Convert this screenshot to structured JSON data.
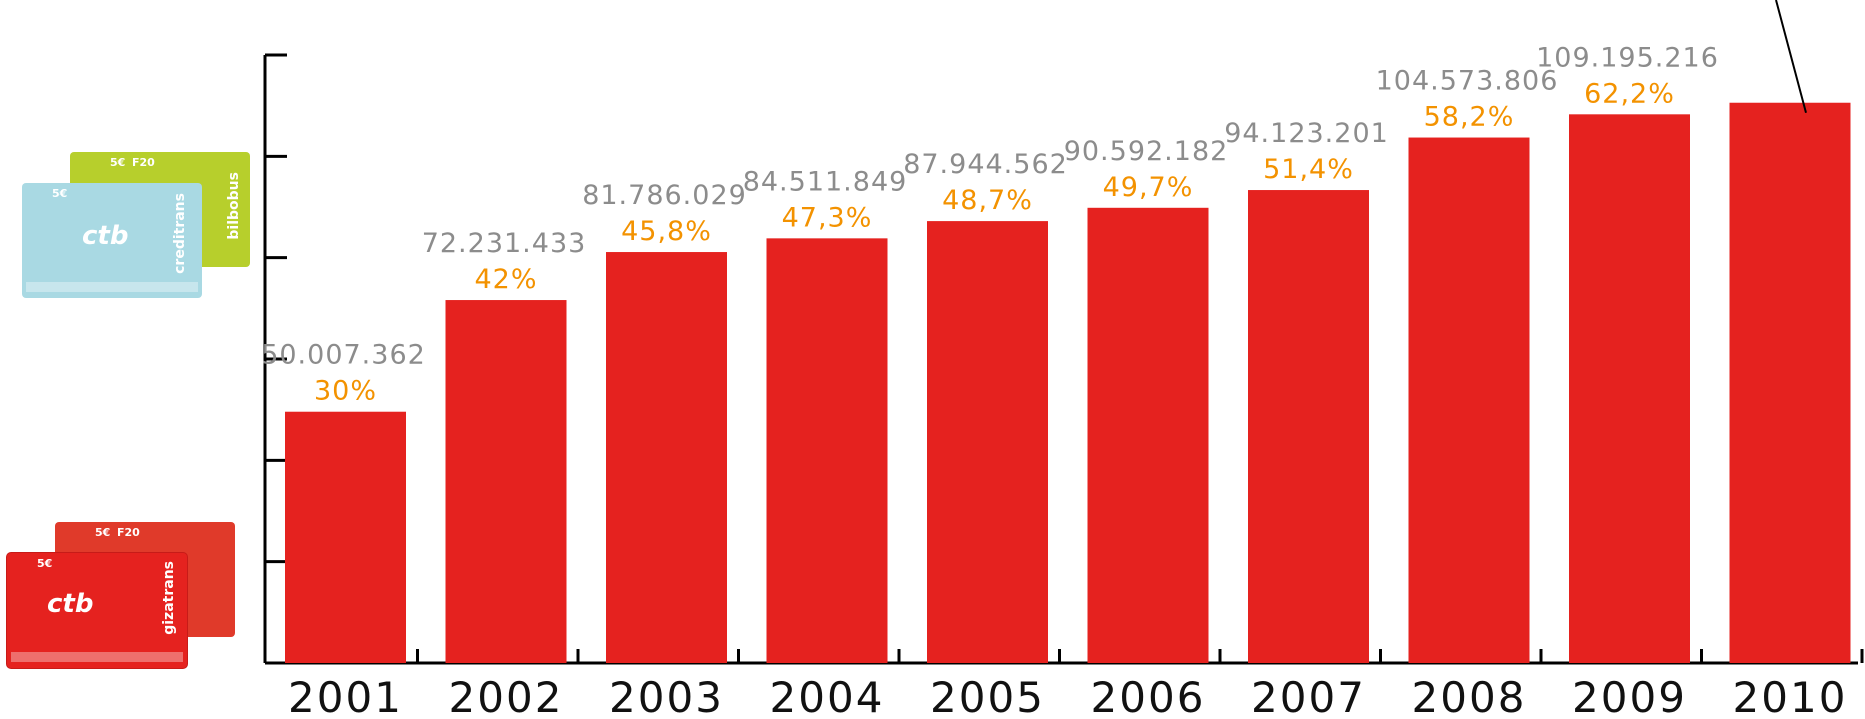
{
  "chart_data": {
    "type": "bar",
    "categories": [
      "2001",
      "2002",
      "2003",
      "2004",
      "2005",
      "2006",
      "2007",
      "2008",
      "2009",
      "2010"
    ],
    "values": [
      50007362,
      72231433,
      81786029,
      84511849,
      87944562,
      90592182,
      94123201,
      104573806,
      109195216,
      111500000
    ],
    "value_labels": [
      "50.007.362",
      "72.231.433",
      "81.786.029",
      "84.511.849",
      "87.944.562",
      "90.592.182",
      "94.123.201",
      "104.573.806",
      "109.195.216",
      ""
    ],
    "percent_labels": [
      "30%",
      "42%",
      "45,8%",
      "47,3%",
      "48,7%",
      "49,7%",
      "51,4%",
      "58,2%",
      "62,2%",
      ""
    ],
    "ylim": [
      0,
      121000000
    ],
    "y_ticks": 6,
    "grid": false,
    "colors": {
      "bar": "#e5221f",
      "value_label": "#8c8c8c",
      "percent_label": "#f39200",
      "axis": "#000000"
    }
  },
  "cards": {
    "top": {
      "logo": "ctb",
      "side_text": "creditrans",
      "side_text_2": "bilbobus",
      "fare": "5€",
      "fare_2": "F20",
      "colors": [
        "#b7cf2c",
        "#a9d9e3"
      ]
    },
    "bottom": {
      "logo": "ctb",
      "side_text": "gizatrans",
      "fare": "5€",
      "fare_2": "F20",
      "colors": [
        "#e03a2a",
        "#e5221f"
      ]
    }
  }
}
